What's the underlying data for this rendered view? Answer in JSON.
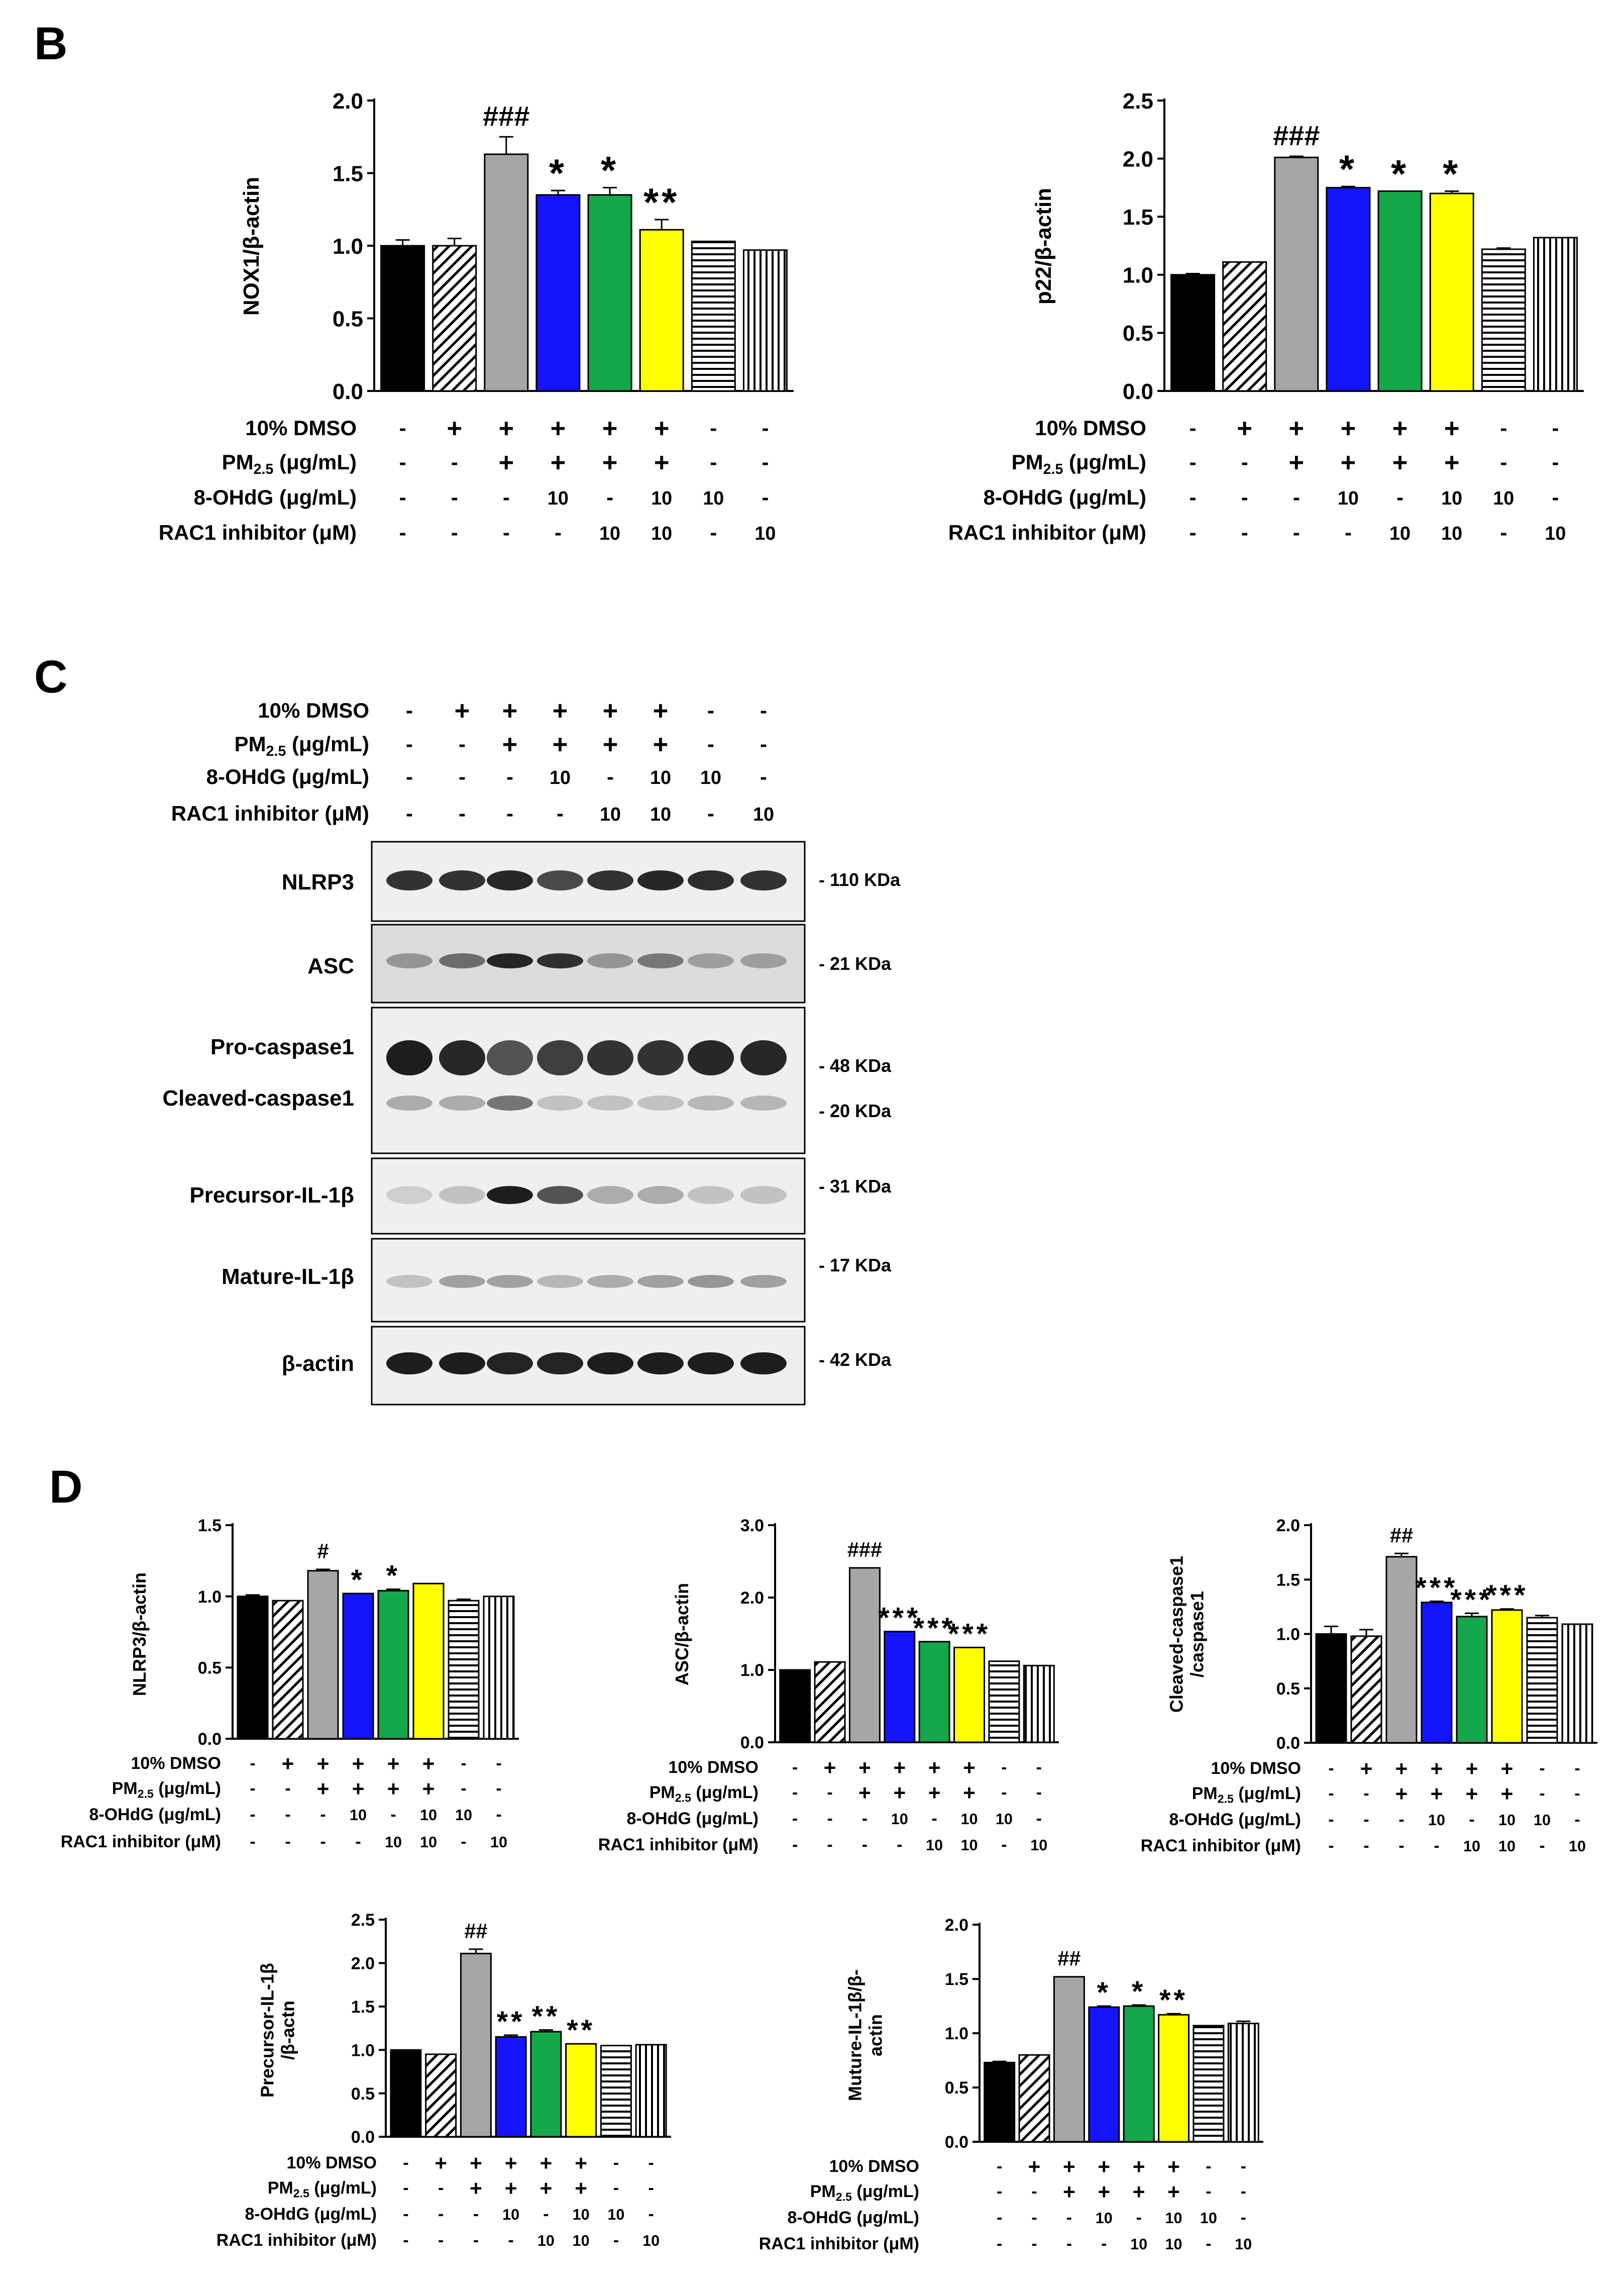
{
  "panel_labels": {
    "B": "B",
    "C": "C",
    "D": "D"
  },
  "treatments": {
    "row_labels": [
      "10% DMSO",
      "PM2.5 (μg/mL)",
      "8-OHdG (μg/mL)",
      "RAC1 inhibitor (μM)"
    ],
    "values": [
      [
        "-",
        "+",
        "+",
        "+",
        "+",
        "+",
        "-",
        "-"
      ],
      [
        "-",
        "-",
        "+",
        "+",
        "+",
        "+",
        "-",
        "-"
      ],
      [
        "-",
        "-",
        "-",
        "10",
        "-",
        "10",
        "10",
        "-"
      ],
      [
        "-",
        "-",
        "-",
        "-",
        "10",
        "10",
        "-",
        "10"
      ]
    ]
  },
  "bar_styles": [
    {
      "fill": "#000000",
      "pattern": "solid"
    },
    {
      "fill": "#ffffff",
      "pattern": "diagonal"
    },
    {
      "fill": "#a6a6a6",
      "pattern": "solid"
    },
    {
      "fill": "#1414ff",
      "pattern": "solid"
    },
    {
      "fill": "#14a84a",
      "pattern": "solid"
    },
    {
      "fill": "#ffff00",
      "pattern": "solid"
    },
    {
      "fill": "#ffffff",
      "pattern": "horizontal"
    },
    {
      "fill": "#ffffff",
      "pattern": "vertical"
    }
  ],
  "chart_data": [
    {
      "panel": "B",
      "type": "bar",
      "ylabel": "NOX1/β-actin",
      "ylim": [
        0,
        2.0
      ],
      "yticks": [
        "0.0",
        "0.5",
        "1.0",
        "1.5",
        "2.0"
      ],
      "values": [
        1.0,
        1.0,
        1.63,
        1.35,
        1.35,
        1.11,
        1.03,
        0.97
      ],
      "errors": [
        0.04,
        0.05,
        0.12,
        0.03,
        0.05,
        0.07,
        0.0,
        0.0
      ],
      "annotations": [
        "",
        "",
        "###",
        "*",
        "*",
        "**",
        "",
        ""
      ]
    },
    {
      "panel": "B",
      "type": "bar",
      "ylabel": "p22/β-actin",
      "ylim": [
        0,
        2.5
      ],
      "yticks": [
        "0.0",
        "0.5",
        "1.0",
        "1.5",
        "2.0",
        "2.5"
      ],
      "values": [
        1.0,
        1.11,
        2.01,
        1.75,
        1.72,
        1.7,
        1.22,
        1.32
      ],
      "errors": [
        0.01,
        0.0,
        0.01,
        0.01,
        0.0,
        0.02,
        0.01,
        0.0
      ],
      "annotations": [
        "",
        "",
        "###",
        "*",
        "*",
        "*",
        "",
        ""
      ]
    },
    {
      "panel": "D",
      "type": "bar",
      "ylabel": "NLRP3/β-actin",
      "ylim": [
        0,
        1.5
      ],
      "yticks": [
        "0.0",
        "0.5",
        "1.0",
        "1.5"
      ],
      "values": [
        1.0,
        0.97,
        1.18,
        1.02,
        1.04,
        1.09,
        0.97,
        1.0
      ],
      "errors": [
        0.01,
        0.0,
        0.01,
        0.0,
        0.01,
        0.0,
        0.01,
        0.0
      ],
      "annotations": [
        "",
        "",
        "#",
        "*",
        "*",
        "",
        "",
        ""
      ]
    },
    {
      "panel": "D",
      "type": "bar",
      "ylabel": "ASC/β-actin",
      "ylim": [
        0,
        3.0
      ],
      "yticks": [
        "0.0",
        "1.0",
        "2.0",
        "3.0"
      ],
      "values": [
        1.0,
        1.11,
        2.41,
        1.53,
        1.39,
        1.31,
        1.12,
        1.06
      ],
      "errors": [
        0.0,
        0.0,
        0.0,
        0.0,
        0.0,
        0.0,
        0.0,
        0.0
      ],
      "annotations": [
        "",
        "",
        "###",
        "***",
        "***",
        "***",
        "",
        ""
      ]
    },
    {
      "panel": "D",
      "type": "bar",
      "ylabel": "Cleaved-caspase1 /caspase1",
      "ylabel_lines": [
        "Cleaved-caspase1",
        "/caspase1"
      ],
      "ylim": [
        0,
        2.0
      ],
      "yticks": [
        "0.0",
        "0.5",
        "1.0",
        "1.5",
        "2.0"
      ],
      "values": [
        1.0,
        0.98,
        1.71,
        1.29,
        1.16,
        1.22,
        1.15,
        1.09
      ],
      "errors": [
        0.07,
        0.06,
        0.03,
        0.01,
        0.03,
        0.01,
        0.02,
        0.0
      ],
      "annotations": [
        "",
        "",
        "##",
        "***",
        "***",
        "***",
        "",
        ""
      ]
    },
    {
      "panel": "D",
      "type": "bar",
      "ylabel": "Precursor-IL-1β /β-actn",
      "ylabel_lines": [
        "Precursor-IL-1β",
        "/β-actn"
      ],
      "ylim": [
        0,
        2.5
      ],
      "yticks": [
        "0.0",
        "0.5",
        "1.0",
        "1.5",
        "2.0",
        "2.5"
      ],
      "values": [
        1.0,
        0.95,
        2.11,
        1.15,
        1.21,
        1.07,
        1.05,
        1.06
      ],
      "errors": [
        0.0,
        0.0,
        0.05,
        0.02,
        0.02,
        0.0,
        0.0,
        0.0
      ],
      "annotations": [
        "",
        "",
        "##",
        "**",
        "**",
        "**",
        "",
        ""
      ]
    },
    {
      "panel": "D",
      "type": "bar",
      "ylabel": "Muture-IL-1β/β- actin",
      "ylabel_lines": [
        "Muture-IL-1β/β-",
        "actin"
      ],
      "ylim": [
        0,
        2.0
      ],
      "yticks": [
        "0.0",
        "0.5",
        "1.0",
        "1.5",
        "2.0"
      ],
      "values": [
        0.73,
        0.8,
        1.52,
        1.24,
        1.25,
        1.17,
        1.07,
        1.09
      ],
      "errors": [
        0.01,
        0.0,
        0.0,
        0.01,
        0.01,
        0.01,
        0.0,
        0.02
      ],
      "annotations": [
        "",
        "",
        "##",
        "*",
        "*",
        "**",
        "",
        ""
      ]
    }
  ],
  "western_blot": {
    "proteins": [
      "NLRP3",
      "ASC",
      "Pro-caspase1",
      "Cleaved-caspase1",
      "Precursor-IL-1β",
      "Mature-IL-1β",
      "β-actin"
    ],
    "sizes": [
      "- 110 KDa",
      "- 21 KDa",
      "- 48 KDa",
      "- 20 KDa",
      "- 31 KDa",
      "- 17 KDa",
      "- 42 KDa"
    ]
  }
}
